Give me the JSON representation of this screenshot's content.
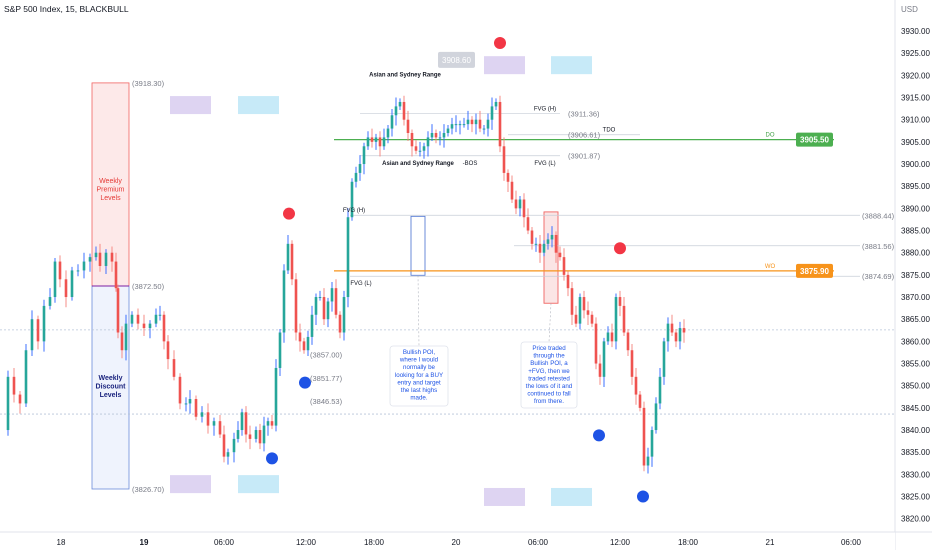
{
  "header": {
    "title": "S&P 500 Index, 15, BLACKBULL"
  },
  "chart_data": {
    "type": "candlestick",
    "currency": "USD",
    "ylim": [
      3817,
      3937
    ],
    "y_ticks": [
      "3930.00",
      "3925.00",
      "3920.00",
      "3915.00",
      "3910.00",
      "3905.00",
      "3900.00",
      "3895.00",
      "3890.00",
      "3885.00",
      "3880.00",
      "3875.00",
      "3870.00",
      "3865.00",
      "3860.00",
      "3855.00",
      "3850.00",
      "3845.00",
      "3840.00",
      "3835.00",
      "3830.00",
      "3825.00",
      "3820.00"
    ],
    "x_ticks": [
      {
        "label": "18",
        "bold": false,
        "t": 61
      },
      {
        "label": "19",
        "bold": true,
        "t": 144
      },
      {
        "label": "06:00",
        "bold": false,
        "t": 224
      },
      {
        "label": "12:00",
        "bold": false,
        "t": 306
      },
      {
        "label": "18:00",
        "bold": false,
        "t": 374
      },
      {
        "label": "20",
        "bold": false,
        "t": 456
      },
      {
        "label": "06:00",
        "bold": false,
        "t": 538
      },
      {
        "label": "12:00",
        "bold": false,
        "t": 620
      },
      {
        "label": "18:00",
        "bold": false,
        "t": 688
      },
      {
        "label": "21",
        "bold": false,
        "t": 770
      },
      {
        "label": "06:00",
        "bold": false,
        "t": 851
      }
    ],
    "last_price": "3862.60",
    "price_badges": [
      {
        "text": "3905.50",
        "value": 3905.5,
        "color": "#4caf50"
      },
      {
        "text": "3875.90",
        "value": 3875.9,
        "color": "#f7931a"
      }
    ],
    "close_path": [
      [
        2,
        3840
      ],
      [
        8,
        3852
      ],
      [
        14,
        3848
      ],
      [
        20,
        3846
      ],
      [
        26,
        3858
      ],
      [
        32,
        3865
      ],
      [
        38,
        3860
      ],
      [
        44,
        3868
      ],
      [
        50,
        3870
      ],
      [
        55,
        3878
      ],
      [
        60,
        3874
      ],
      [
        66,
        3870
      ],
      [
        72,
        3876
      ],
      [
        78,
        3876
      ],
      [
        84,
        3878
      ],
      [
        90,
        3879
      ],
      [
        96,
        3880
      ],
      [
        100,
        3877
      ],
      [
        106,
        3880
      ],
      [
        112,
        3878
      ],
      [
        116,
        3872
      ],
      [
        118,
        3862
      ],
      [
        122,
        3858
      ],
      [
        126,
        3864
      ],
      [
        132,
        3866
      ],
      [
        138,
        3864
      ],
      [
        144,
        3863
      ],
      [
        150,
        3864
      ],
      [
        156,
        3866
      ],
      [
        160,
        3866
      ],
      [
        164,
        3860
      ],
      [
        168,
        3856
      ],
      [
        174,
        3852
      ],
      [
        180,
        3846
      ],
      [
        186,
        3846
      ],
      [
        190,
        3847
      ],
      [
        196,
        3843
      ],
      [
        202,
        3844
      ],
      [
        208,
        3841
      ],
      [
        214,
        3842
      ],
      [
        220,
        3839
      ],
      [
        224,
        3834
      ],
      [
        228,
        3835
      ],
      [
        234,
        3838
      ],
      [
        238,
        3840
      ],
      [
        242,
        3844
      ],
      [
        246,
        3839
      ],
      [
        250,
        3838
      ],
      [
        256,
        3840
      ],
      [
        260,
        3837
      ],
      [
        264,
        3841
      ],
      [
        268,
        3842
      ],
      [
        272,
        3841
      ],
      [
        276,
        3854
      ],
      [
        280,
        3862
      ],
      [
        284,
        3876
      ],
      [
        288,
        3882
      ],
      [
        292,
        3874
      ],
      [
        296,
        3862
      ],
      [
        300,
        3860
      ],
      [
        304,
        3858
      ],
      [
        308,
        3861
      ],
      [
        312,
        3866
      ],
      [
        316,
        3870
      ],
      [
        320,
        3870
      ],
      [
        324,
        3865
      ],
      [
        328,
        3869
      ],
      [
        332,
        3872
      ],
      [
        336,
        3866
      ],
      [
        340,
        3862
      ],
      [
        344,
        3870
      ],
      [
        348,
        3888
      ],
      [
        352,
        3896
      ],
      [
        356,
        3898
      ],
      [
        360,
        3900
      ],
      [
        364,
        3904
      ],
      [
        368,
        3906
      ],
      [
        372,
        3905
      ],
      [
        376,
        3906
      ],
      [
        380,
        3904
      ],
      [
        384,
        3906
      ],
      [
        388,
        3908
      ],
      [
        392,
        3911
      ],
      [
        396,
        3913
      ],
      [
        400,
        3914
      ],
      [
        404,
        3910
      ],
      [
        408,
        3907
      ],
      [
        412,
        3904
      ],
      [
        416,
        3903
      ],
      [
        420,
        3903
      ],
      [
        424,
        3904
      ],
      [
        428,
        3906
      ],
      [
        432,
        3907
      ],
      [
        436,
        3906
      ],
      [
        440,
        3906
      ],
      [
        444,
        3907
      ],
      [
        448,
        3908
      ],
      [
        452,
        3909
      ],
      [
        456,
        3909
      ],
      [
        460,
        3909
      ],
      [
        464,
        3909
      ],
      [
        468,
        3910
      ],
      [
        472,
        3909
      ],
      [
        476,
        3910
      ],
      [
        480,
        3908
      ],
      [
        484,
        3908
      ],
      [
        488,
        3910
      ],
      [
        492,
        3913
      ],
      [
        496,
        3914
      ],
      [
        500,
        3904
      ],
      [
        504,
        3898
      ],
      [
        508,
        3896
      ],
      [
        512,
        3892
      ],
      [
        516,
        3890
      ],
      [
        520,
        3892
      ],
      [
        524,
        3888
      ],
      [
        528,
        3885
      ],
      [
        532,
        3882
      ],
      [
        536,
        3882
      ],
      [
        540,
        3880
      ],
      [
        544,
        3882
      ],
      [
        548,
        3883
      ],
      [
        552,
        3884
      ],
      [
        556,
        3880
      ],
      [
        560,
        3879
      ],
      [
        564,
        3875
      ],
      [
        568,
        3872
      ],
      [
        572,
        3866
      ],
      [
        576,
        3864
      ],
      [
        580,
        3870
      ],
      [
        584,
        3867
      ],
      [
        588,
        3866
      ],
      [
        592,
        3864
      ],
      [
        596,
        3855
      ],
      [
        600,
        3852
      ],
      [
        604,
        3860
      ],
      [
        608,
        3862
      ],
      [
        612,
        3860
      ],
      [
        616,
        3870
      ],
      [
        620,
        3868
      ],
      [
        624,
        3862
      ],
      [
        628,
        3858
      ],
      [
        632,
        3852
      ],
      [
        636,
        3848
      ],
      [
        640,
        3845
      ],
      [
        644,
        3832
      ],
      [
        648,
        3834
      ],
      [
        652,
        3840
      ],
      [
        656,
        3846
      ],
      [
        660,
        3852
      ],
      [
        664,
        3860
      ],
      [
        668,
        3864
      ],
      [
        672,
        3862
      ],
      [
        676,
        3860
      ],
      [
        680,
        3863
      ],
      [
        684,
        3862
      ]
    ],
    "lines": [
      {
        "from": 334,
        "to": 834,
        "value": 3875.9,
        "color": "#f7931a",
        "width": 1.2
      },
      {
        "from": 334,
        "to": 834,
        "value": 3905.5,
        "color": "#4caf50",
        "width": 1.2
      },
      {
        "from": 0,
        "to": 895,
        "value": 3862.6,
        "color": "#b7c4d8",
        "width": 0.8,
        "dash": "2,2"
      },
      {
        "from": 0,
        "to": 895,
        "value": 3843.6,
        "color": "#b7c4d8",
        "width": 0.8,
        "dash": "2,2"
      },
      {
        "from": 350,
        "to": 860,
        "value": 3888.44,
        "color": "#c7cdd8",
        "width": 0.7
      },
      {
        "from": 350,
        "to": 860,
        "value": 3874.69,
        "color": "#c7cdd8",
        "width": 0.7
      },
      {
        "from": 514,
        "to": 860,
        "value": 3881.56,
        "color": "#c7cdd8",
        "width": 0.7
      },
      {
        "from": 360,
        "to": 560,
        "value": 3911.36,
        "color": "#c7cdd8",
        "width": 0.7
      },
      {
        "from": 360,
        "to": 560,
        "value": 3901.87,
        "color": "#c7cdd8",
        "width": 0.7
      },
      {
        "from": 508,
        "to": 640,
        "value": 3906.61,
        "color": "#c7cdd8",
        "width": 0.7
      }
    ],
    "price_labels": [
      {
        "text": "(3918.30)",
        "x": 132,
        "value": 3918.3
      },
      {
        "text": "(3872.50)",
        "x": 132,
        "value": 3872.5
      },
      {
        "text": "(3826.70)",
        "x": 132,
        "value": 3826.7
      },
      {
        "text": "(3857.00)",
        "x": 310,
        "value": 3857.0
      },
      {
        "text": "(3851.77)",
        "x": 310,
        "value": 3851.77
      },
      {
        "text": "(3846.53)",
        "x": 310,
        "value": 3846.53
      },
      {
        "text": "(3911.36)",
        "x": 568,
        "value": 3911.36
      },
      {
        "text": "(3906.61)",
        "x": 568,
        "value": 3906.61
      },
      {
        "text": "(3901.87)",
        "x": 568,
        "value": 3901.87
      },
      {
        "text": "(3888.44)",
        "x": 862,
        "value": 3888.44
      },
      {
        "text": "(3881.56)",
        "x": 862,
        "value": 3881.56
      },
      {
        "text": "(3874.69)",
        "x": 862,
        "value": 3874.69
      }
    ],
    "annotations": [
      {
        "text": "Asian and Sydney Range",
        "x": 405,
        "value": 3919.8
      },
      {
        "text": "Asian and Sydney Range",
        "x": 418,
        "value": 3899.8
      },
      {
        "text": "FVG (H)",
        "x": 354,
        "value": 3889.2
      },
      {
        "text": "FVG (L)",
        "x": 361,
        "value": 3872.7
      },
      {
        "text": "FVG (H)",
        "x": 545,
        "value": 3912.1
      },
      {
        "text": "FVG (L)",
        "x": 545,
        "value": 3899.8
      },
      {
        "text": "TDO",
        "x": 609,
        "value": 3907.3
      },
      {
        "text": "-BOS",
        "x": 470,
        "value": 3899.8
      },
      {
        "text": "DO",
        "x": 770,
        "value": 3906.2
      },
      {
        "text": "WO",
        "x": 770,
        "value": 3876.6
      }
    ],
    "weekly": {
      "premium_label": [
        "Weekly",
        "Premium",
        "Levels"
      ],
      "discount_label": [
        "Weekly",
        "Discount",
        "Levels"
      ]
    },
    "notes": [
      {
        "lines": [
          "Bullish POI,",
          "where I would",
          "normally be",
          "looking for a BUY",
          "entry and target",
          "the last highs",
          "made."
        ]
      },
      {
        "lines": [
          "Price traded",
          "through the",
          "Bullish POI, a",
          "+FVG, then we",
          "traded retested",
          "the lows of it and",
          "continued to fall",
          "from there."
        ]
      }
    ],
    "markers": [
      {
        "type": "high",
        "x": 289,
        "value": 3888.8
      },
      {
        "type": "high",
        "x": 500,
        "value": 3927.3
      },
      {
        "type": "high",
        "x": 620,
        "value": 3881.0
      },
      {
        "type": "low",
        "x": 305,
        "value": 3850.7
      },
      {
        "type": "low",
        "x": 272,
        "value": 3833.6
      },
      {
        "type": "low",
        "x": 599,
        "value": 3838.8
      },
      {
        "type": "low",
        "x": 643,
        "value": 3825.0
      }
    ],
    "sessions": [
      {
        "color": "#d8ccf0",
        "x": 170,
        "value": 3913.3
      },
      {
        "color": "#bde6f7",
        "x": 238,
        "value": 3913.3
      },
      {
        "color": "#d8ccf0",
        "x": 170,
        "value": 3827.8
      },
      {
        "color": "#bde6f7",
        "x": 238,
        "value": 3827.8
      },
      {
        "color": "#d8ccf0",
        "x": 484,
        "value": 3922.3
      },
      {
        "color": "#bde6f7",
        "x": 551,
        "value": 3922.3
      },
      {
        "color": "#d8ccf0",
        "x": 484,
        "value": 3824.9
      },
      {
        "color": "#bde6f7",
        "x": 551,
        "value": 3824.9
      }
    ],
    "tdo_badge": "3908.60",
    "colors": {
      "up": "#26a69a",
      "down": "#ef5350",
      "up_wick": "#2962ff",
      "down_wick": "#f5807a"
    }
  }
}
